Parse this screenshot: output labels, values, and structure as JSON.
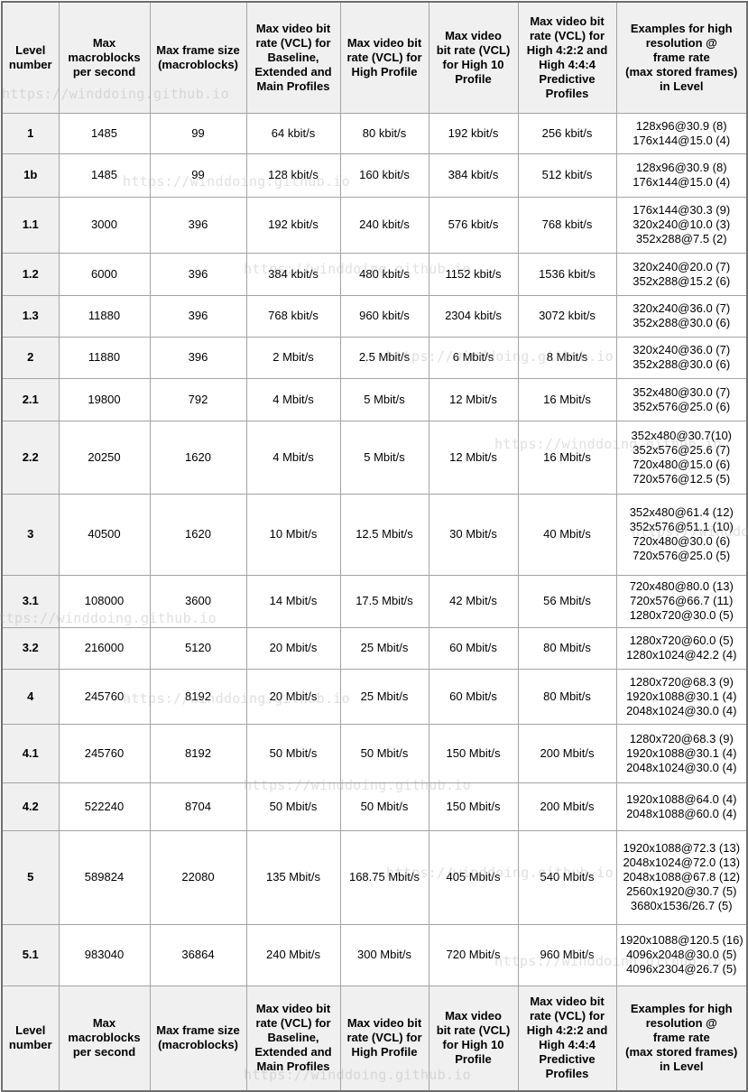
{
  "watermark": {
    "text": "https://winddoing.github.io",
    "color": "rgba(158,158,158,0.32)"
  },
  "table": {
    "columns": [
      "Level\nnumber",
      "Max\nmacroblocks\nper second",
      "Max frame size\n(macroblocks)",
      "Max video bit\nrate (VCL) for\nBaseline,\nExtended and\nMain Profiles",
      "Max video bit\nrate (VCL) for\nHigh Profile",
      "Max video\nbit rate (VCL)\nfor High 10\nProfile",
      "Max video bit\nrate (VCL) for\nHigh 4:2:2 and\nHigh 4:4:4\nPredictive\nProfiles",
      "Examples for high\nresolution @\nframe rate\n(max stored frames)\nin Level"
    ],
    "rows": [
      {
        "level": "1",
        "max_macroblocks_per_second": "1485",
        "max_frame_size": "99",
        "bitrate_bem": "64 kbit/s",
        "bitrate_high": "80 kbit/s",
        "bitrate_high10": "192 kbit/s",
        "bitrate_high422444": "256 kbit/s",
        "examples": "128x96@30.9 (8)\n176x144@15.0 (4)"
      },
      {
        "level": "1b",
        "max_macroblocks_per_second": "1485",
        "max_frame_size": "99",
        "bitrate_bem": "128 kbit/s",
        "bitrate_high": "160 kbit/s",
        "bitrate_high10": "384 kbit/s",
        "bitrate_high422444": "512 kbit/s",
        "examples": "128x96@30.9 (8)\n176x144@15.0 (4)"
      },
      {
        "level": "1.1",
        "max_macroblocks_per_second": "3000",
        "max_frame_size": "396",
        "bitrate_bem": "192 kbit/s",
        "bitrate_high": "240 kbit/s",
        "bitrate_high10": "576 kbit/s",
        "bitrate_high422444": "768 kbit/s",
        "examples": "176x144@30.3 (9)\n320x240@10.0 (3)\n352x288@7.5 (2)"
      },
      {
        "level": "1.2",
        "max_macroblocks_per_second": "6000",
        "max_frame_size": "396",
        "bitrate_bem": "384 kbit/s",
        "bitrate_high": "480 kbit/s",
        "bitrate_high10": "1152 kbit/s",
        "bitrate_high422444": "1536 kbit/s",
        "examples": "320x240@20.0 (7)\n352x288@15.2 (6)"
      },
      {
        "level": "1.3",
        "max_macroblocks_per_second": "11880",
        "max_frame_size": "396",
        "bitrate_bem": "768 kbit/s",
        "bitrate_high": "960 kbit/s",
        "bitrate_high10": "2304 kbit/s",
        "bitrate_high422444": "3072 kbit/s",
        "examples": "320x240@36.0 (7)\n352x288@30.0 (6)"
      },
      {
        "level": "2",
        "max_macroblocks_per_second": "11880",
        "max_frame_size": "396",
        "bitrate_bem": "2 Mbit/s",
        "bitrate_high": "2.5 Mbit/s",
        "bitrate_high10": "6 Mbit/s",
        "bitrate_high422444": "8 Mbit/s",
        "examples": "320x240@36.0 (7)\n352x288@30.0 (6)"
      },
      {
        "level": "2.1",
        "max_macroblocks_per_second": "19800",
        "max_frame_size": "792",
        "bitrate_bem": "4 Mbit/s",
        "bitrate_high": "5 Mbit/s",
        "bitrate_high10": "12 Mbit/s",
        "bitrate_high422444": "16 Mbit/s",
        "examples": "352x480@30.0 (7)\n352x576@25.0 (6)"
      },
      {
        "level": "2.2",
        "max_macroblocks_per_second": "20250",
        "max_frame_size": "1620",
        "bitrate_bem": "4 Mbit/s",
        "bitrate_high": "5 Mbit/s",
        "bitrate_high10": "12 Mbit/s",
        "bitrate_high422444": "16 Mbit/s",
        "examples": "352x480@30.7(10)\n352x576@25.6 (7)\n720x480@15.0 (6)\n720x576@12.5 (5)"
      },
      {
        "level": "3",
        "max_macroblocks_per_second": "40500",
        "max_frame_size": "1620",
        "bitrate_bem": "10 Mbit/s",
        "bitrate_high": "12.5 Mbit/s",
        "bitrate_high10": "30 Mbit/s",
        "bitrate_high422444": "40 Mbit/s",
        "examples": "352x480@61.4 (12)\n352x576@51.1 (10)\n720x480@30.0 (6)\n720x576@25.0 (5)"
      },
      {
        "level": "3.1",
        "max_macroblocks_per_second": "108000",
        "max_frame_size": "3600",
        "bitrate_bem": "14 Mbit/s",
        "bitrate_high": "17.5 Mbit/s",
        "bitrate_high10": "42 Mbit/s",
        "bitrate_high422444": "56 Mbit/s",
        "examples": "720x480@80.0 (13)\n720x576@66.7 (11)\n1280x720@30.0 (5)"
      },
      {
        "level": "3.2",
        "max_macroblocks_per_second": "216000",
        "max_frame_size": "5120",
        "bitrate_bem": "20 Mbit/s",
        "bitrate_high": "25 Mbit/s",
        "bitrate_high10": "60 Mbit/s",
        "bitrate_high422444": "80 Mbit/s",
        "examples": "1280x720@60.0 (5)\n1280x1024@42.2 (4)"
      },
      {
        "level": "4",
        "max_macroblocks_per_second": "245760",
        "max_frame_size": "8192",
        "bitrate_bem": "20 Mbit/s",
        "bitrate_high": "25 Mbit/s",
        "bitrate_high10": "60 Mbit/s",
        "bitrate_high422444": "80 Mbit/s",
        "examples": "1280x720@68.3 (9)\n1920x1088@30.1 (4)\n2048x1024@30.0 (4)"
      },
      {
        "level": "4.1",
        "max_macroblocks_per_second": "245760",
        "max_frame_size": "8192",
        "bitrate_bem": "50 Mbit/s",
        "bitrate_high": "50 Mbit/s",
        "bitrate_high10": "150 Mbit/s",
        "bitrate_high422444": "200 Mbit/s",
        "examples": "1280x720@68.3 (9)\n1920x1088@30.1 (4)\n2048x1024@30.0 (4)"
      },
      {
        "level": "4.2",
        "max_macroblocks_per_second": "522240",
        "max_frame_size": "8704",
        "bitrate_bem": "50 Mbit/s",
        "bitrate_high": "50 Mbit/s",
        "bitrate_high10": "150 Mbit/s",
        "bitrate_high422444": "200 Mbit/s",
        "examples": "1920x1088@64.0 (4)\n2048x1088@60.0 (4)"
      },
      {
        "level": "5",
        "max_macroblocks_per_second": "589824",
        "max_frame_size": "22080",
        "bitrate_bem": "135 Mbit/s",
        "bitrate_high": "168.75 Mbit/s",
        "bitrate_high10": "405 Mbit/s",
        "bitrate_high422444": "540 Mbit/s",
        "examples": "1920x1088@72.3 (13)\n2048x1024@72.0 (13)\n2048x1088@67.8 (12)\n2560x1920@30.7 (5)\n3680x1536/26.7 (5)"
      },
      {
        "level": "5.1",
        "max_macroblocks_per_second": "983040",
        "max_frame_size": "36864",
        "bitrate_bem": "240 Mbit/s",
        "bitrate_high": "300 Mbit/s",
        "bitrate_high10": "720 Mbit/s",
        "bitrate_high422444": "960 Mbit/s",
        "examples": "1920x1088@120.5 (16)\n4096x2048@30.0 (5)\n4096x2304@26.7 (5)"
      }
    ]
  }
}
